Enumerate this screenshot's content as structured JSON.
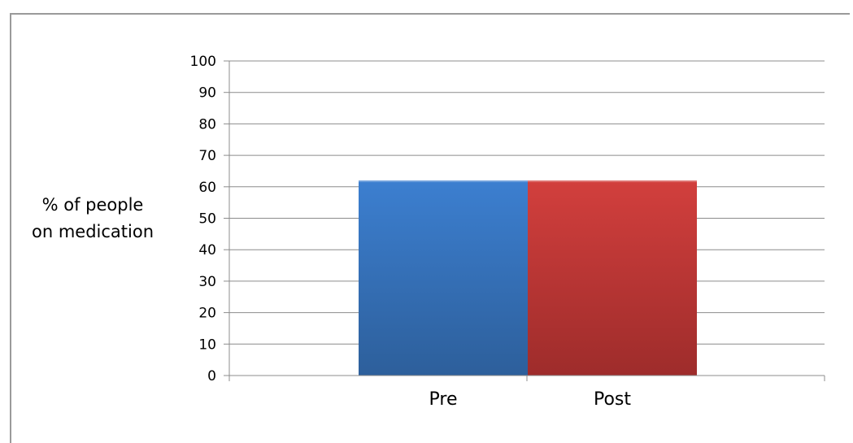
{
  "chart_data": {
    "type": "bar",
    "categories": [
      "Pre",
      "Post"
    ],
    "values": [
      62,
      62
    ],
    "colors": [
      "#3a78c4",
      "#c43a3a"
    ],
    "ylabel_lines": [
      "% of people",
      "on medication"
    ],
    "ylim": [
      0,
      100
    ],
    "yticks": [
      "0",
      "10",
      "20",
      "30",
      "40",
      "50",
      "60",
      "70",
      "80",
      "90",
      "100"
    ],
    "grid": true,
    "legend": "none"
  }
}
